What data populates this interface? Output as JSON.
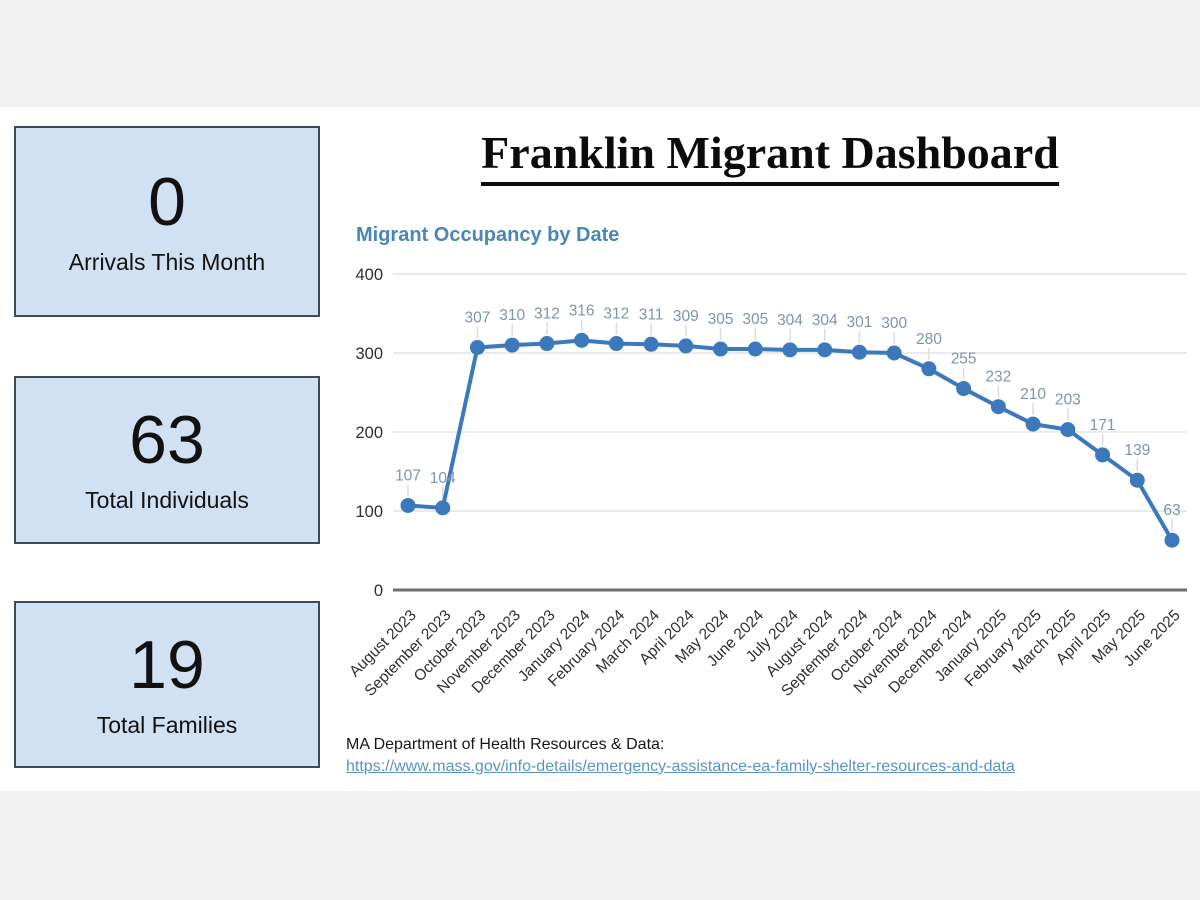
{
  "title": "Franklin Migrant Dashboard",
  "stats": [
    {
      "value": "0",
      "label": "Arrivals This Month"
    },
    {
      "value": "63",
      "label": "Total Individuals"
    },
    {
      "value": "19",
      "label": "Total Families"
    }
  ],
  "footer": {
    "source_label": "MA Department of Health Resources & Data:",
    "source_url": "https://www.mass.gov/info-details/emergency-assistance-ea-family-shelter-resources-and-data"
  },
  "colors": {
    "card_background": "#cfe1f3",
    "card_border": "#3f4a57",
    "chart_title_blue": "#4a86b8",
    "link_blue": "#5b93c4",
    "page_background": "#f2f2f2"
  },
  "chart_data": {
    "type": "line",
    "title": "Migrant Occupancy by Date",
    "categories": [
      "August 2023",
      "September 2023",
      "October 2023",
      "November 2023",
      "December 2023",
      "January 2024",
      "February 2024",
      "March 2024",
      "April 2024",
      "May 2024",
      "June 2024",
      "July 2024",
      "August 2024",
      "September 2024",
      "October 2024",
      "November 2024",
      "December 2024",
      "January 2025",
      "February 2025",
      "March 2025",
      "April 2025",
      "May 2025",
      "June 2025"
    ],
    "values": [
      107,
      104,
      307,
      310,
      312,
      316,
      312,
      311,
      309,
      305,
      305,
      304,
      304,
      301,
      300,
      280,
      255,
      232,
      210,
      203,
      171,
      139,
      63
    ],
    "xlabel": "",
    "ylabel": "",
    "ylim": [
      0,
      400
    ],
    "yticks": [
      0,
      100,
      200,
      300,
      400
    ],
    "grid": true,
    "legend": "none",
    "data_labels": true,
    "series_color": "#3c78bc",
    "label_color": "#7e94aa",
    "grid_color": "#e3e3e3",
    "axis_color": "#6f6f6f",
    "tick_color": "#2e2e2e",
    "leader_color": "#dcdcdc"
  }
}
